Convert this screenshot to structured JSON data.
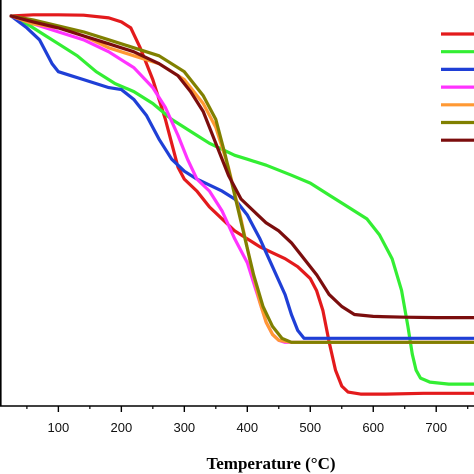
{
  "chart_data": {
    "type": "line",
    "xlabel": "Temperature (°C)",
    "ylabel": "",
    "xlim": [
      20,
      760
    ],
    "ylim": [
      0,
      100
    ],
    "xticks": [
      100,
      200,
      300,
      400,
      500,
      600,
      700
    ],
    "grid": false,
    "legend_position": "top-right",
    "series": [
      {
        "color": "#e31a1c",
        "points": [
          [
            25,
            98
          ],
          [
            60,
            98.3
          ],
          [
            100,
            98.3
          ],
          [
            140,
            98.2
          ],
          [
            180,
            97.5
          ],
          [
            200,
            96.5
          ],
          [
            215,
            95
          ],
          [
            230,
            90
          ],
          [
            240,
            86
          ],
          [
            250,
            82
          ],
          [
            260,
            77
          ],
          [
            270,
            72
          ],
          [
            280,
            66
          ],
          [
            290,
            60
          ],
          [
            300,
            57
          ],
          [
            320,
            54
          ],
          [
            340,
            50
          ],
          [
            360,
            47
          ],
          [
            380,
            44
          ],
          [
            400,
            42
          ],
          [
            420,
            40
          ],
          [
            440,
            38.5
          ],
          [
            460,
            37
          ],
          [
            480,
            35
          ],
          [
            500,
            32
          ],
          [
            510,
            29
          ],
          [
            520,
            24
          ],
          [
            530,
            16
          ],
          [
            540,
            9
          ],
          [
            550,
            5
          ],
          [
            560,
            3.5
          ],
          [
            580,
            3
          ],
          [
            620,
            3
          ],
          [
            680,
            3.2
          ],
          [
            760,
            3.2
          ]
        ]
      },
      {
        "color": "#33ee33",
        "points": [
          [
            25,
            98
          ],
          [
            50,
            96
          ],
          [
            80,
            93
          ],
          [
            100,
            91
          ],
          [
            130,
            88
          ],
          [
            160,
            84
          ],
          [
            190,
            81
          ],
          [
            220,
            79
          ],
          [
            250,
            76
          ],
          [
            280,
            72
          ],
          [
            300,
            70
          ],
          [
            320,
            68
          ],
          [
            340,
            66
          ],
          [
            360,
            64.5
          ],
          [
            380,
            63
          ],
          [
            400,
            62
          ],
          [
            430,
            60.5
          ],
          [
            470,
            58
          ],
          [
            500,
            56
          ],
          [
            530,
            53
          ],
          [
            560,
            50
          ],
          [
            590,
            47
          ],
          [
            610,
            43
          ],
          [
            630,
            37
          ],
          [
            645,
            29
          ],
          [
            655,
            20
          ],
          [
            662,
            13
          ],
          [
            668,
            9
          ],
          [
            675,
            7
          ],
          [
            690,
            6
          ],
          [
            720,
            5.5
          ],
          [
            760,
            5.5
          ]
        ]
      },
      {
        "color": "#1f3fd6",
        "points": [
          [
            25,
            98
          ],
          [
            50,
            95
          ],
          [
            70,
            92
          ],
          [
            80,
            89
          ],
          [
            90,
            86
          ],
          [
            100,
            84
          ],
          [
            120,
            83
          ],
          [
            140,
            82
          ],
          [
            160,
            81
          ],
          [
            180,
            80
          ],
          [
            200,
            79.5
          ],
          [
            220,
            77
          ],
          [
            240,
            73
          ],
          [
            260,
            67
          ],
          [
            280,
            62
          ],
          [
            300,
            59
          ],
          [
            320,
            57
          ],
          [
            340,
            55.5
          ],
          [
            360,
            54
          ],
          [
            380,
            52
          ],
          [
            400,
            48
          ],
          [
            420,
            42
          ],
          [
            440,
            35
          ],
          [
            460,
            28
          ],
          [
            470,
            23
          ],
          [
            480,
            19
          ],
          [
            490,
            17
          ],
          [
            500,
            17
          ],
          [
            560,
            17
          ],
          [
            760,
            17
          ]
        ]
      },
      {
        "color": "#ff33ff",
        "points": [
          [
            25,
            98
          ],
          [
            60,
            96
          ],
          [
            100,
            94
          ],
          [
            140,
            92
          ],
          [
            180,
            89
          ],
          [
            220,
            85
          ],
          [
            250,
            80
          ],
          [
            270,
            75
          ],
          [
            290,
            68
          ],
          [
            305,
            62
          ],
          [
            320,
            57
          ],
          [
            340,
            54
          ],
          [
            360,
            49
          ],
          [
            380,
            42
          ],
          [
            400,
            36
          ],
          [
            410,
            31
          ],
          [
            420,
            26
          ],
          [
            430,
            21
          ],
          [
            440,
            18
          ],
          [
            450,
            16.5
          ],
          [
            460,
            16
          ],
          [
            500,
            16
          ],
          [
            760,
            16
          ]
        ]
      },
      {
        "color": "#ff9933",
        "points": [
          [
            25,
            98
          ],
          [
            60,
            96
          ],
          [
            100,
            95
          ],
          [
            140,
            93
          ],
          [
            180,
            90
          ],
          [
            220,
            88
          ],
          [
            260,
            86
          ],
          [
            300,
            82
          ],
          [
            330,
            76
          ],
          [
            350,
            70
          ],
          [
            370,
            60
          ],
          [
            390,
            47
          ],
          [
            405,
            36
          ],
          [
            420,
            26
          ],
          [
            430,
            21
          ],
          [
            440,
            18
          ],
          [
            450,
            16.5
          ],
          [
            470,
            16
          ],
          [
            760,
            16
          ]
        ]
      },
      {
        "color": "#808000",
        "points": [
          [
            25,
            98
          ],
          [
            60,
            97
          ],
          [
            100,
            95.5
          ],
          [
            140,
            94
          ],
          [
            180,
            92
          ],
          [
            220,
            90
          ],
          [
            260,
            88
          ],
          [
            300,
            84
          ],
          [
            330,
            78
          ],
          [
            350,
            72
          ],
          [
            365,
            63
          ],
          [
            380,
            53
          ],
          [
            395,
            43
          ],
          [
            410,
            33
          ],
          [
            425,
            25
          ],
          [
            440,
            20
          ],
          [
            455,
            17
          ],
          [
            470,
            16
          ],
          [
            500,
            16
          ],
          [
            760,
            16
          ]
        ]
      },
      {
        "color": "#7b0d0d",
        "points": [
          [
            25,
            98
          ],
          [
            60,
            96.5
          ],
          [
            100,
            95
          ],
          [
            140,
            93
          ],
          [
            180,
            91
          ],
          [
            220,
            89
          ],
          [
            260,
            86
          ],
          [
            290,
            83
          ],
          [
            310,
            79
          ],
          [
            330,
            74
          ],
          [
            350,
            66
          ],
          [
            370,
            58
          ],
          [
            390,
            52
          ],
          [
            410,
            49
          ],
          [
            430,
            46
          ],
          [
            450,
            44
          ],
          [
            470,
            41
          ],
          [
            490,
            37
          ],
          [
            510,
            33
          ],
          [
            530,
            28
          ],
          [
            550,
            25
          ],
          [
            570,
            23
          ],
          [
            600,
            22.5
          ],
          [
            650,
            22.3
          ],
          [
            700,
            22.2
          ],
          [
            760,
            22.2
          ]
        ]
      }
    ]
  }
}
